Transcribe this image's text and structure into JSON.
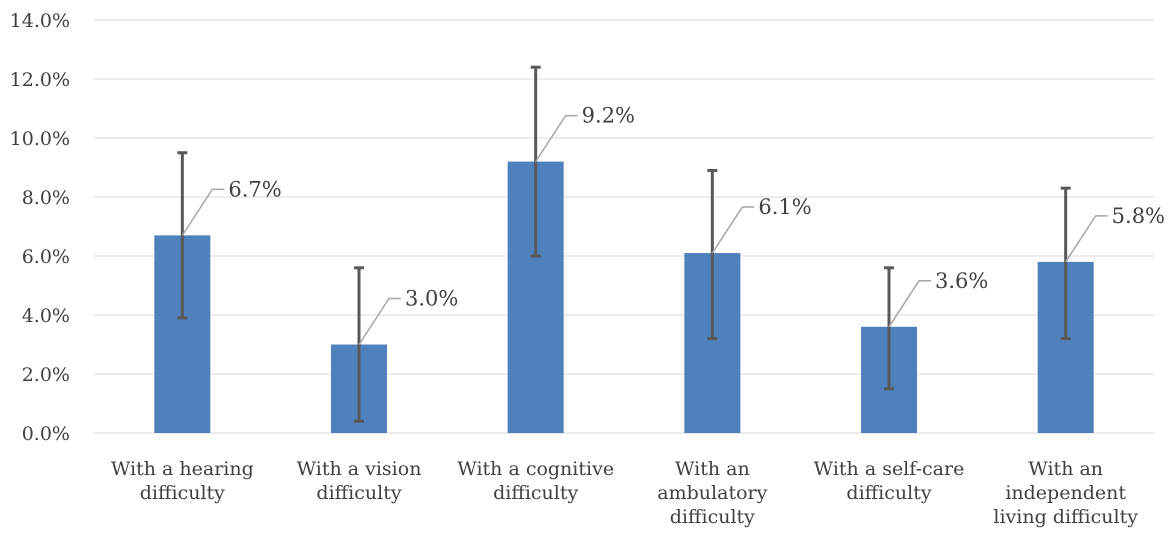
{
  "chart_data": {
    "type": "bar",
    "title": "",
    "xlabel": "",
    "ylabel": "",
    "ylim": [
      0,
      14
    ],
    "y_tick_step": 2,
    "y_tick_format": "percent_1dp",
    "grid": true,
    "legend": "none",
    "colors": {
      "bar": "#4f81bd",
      "error_bar": "#595959",
      "leader_line": "#a6a6a6",
      "grid": "#d9d9d9",
      "text": "#404040"
    },
    "categories": [
      [
        "With a hearing",
        "difficulty"
      ],
      [
        "With a vision",
        "difficulty"
      ],
      [
        "With a cognitive",
        "difficulty"
      ],
      [
        "With an",
        "ambulatory",
        "difficulty"
      ],
      [
        "With a self-care",
        "difficulty"
      ],
      [
        "With an",
        "independent",
        "living difficulty"
      ]
    ],
    "values": [
      6.7,
      3.0,
      9.2,
      6.1,
      3.6,
      5.8
    ],
    "data_labels": [
      "6.7%",
      "3.0%",
      "9.2%",
      "6.1%",
      "3.6%",
      "5.8%"
    ],
    "error_bars": {
      "lower": [
        3.9,
        0.4,
        6.0,
        3.2,
        1.5,
        3.2
      ],
      "upper": [
        9.5,
        5.6,
        12.4,
        8.9,
        5.6,
        8.3
      ]
    }
  }
}
